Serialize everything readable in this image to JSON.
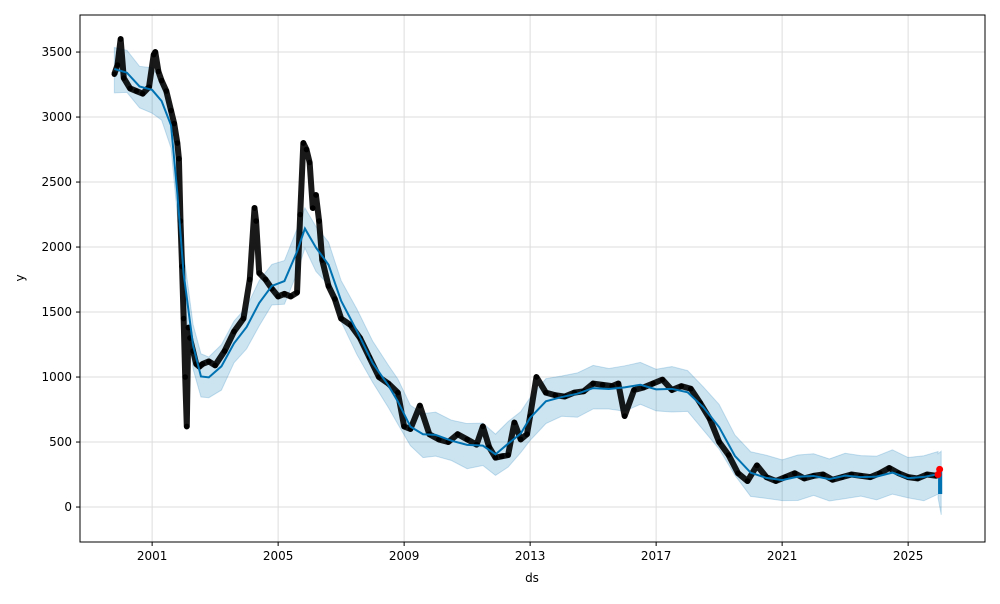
{
  "chart_data": {
    "type": "line",
    "title": "",
    "xlabel": "ds",
    "ylabel": "y",
    "xlim": [
      1998.71,
      2027.44
    ],
    "ylim": [
      -269,
      3785
    ],
    "x_ticks": [
      2001,
      2005,
      2009,
      2013,
      2017,
      2021,
      2025
    ],
    "x_tick_labels": [
      "2001",
      "2005",
      "2009",
      "2013",
      "2017",
      "2021",
      "2025"
    ],
    "y_ticks": [
      0,
      500,
      1000,
      1500,
      2000,
      2500,
      3000,
      3500
    ],
    "y_tick_labels": [
      "0",
      "500",
      "1000",
      "1500",
      "2000",
      "2500",
      "3000",
      "3500"
    ],
    "grid": true,
    "colors": {
      "observed": "#000000",
      "forecast": "#0072B2",
      "interval": "#0072B2",
      "test": "#ff0000"
    },
    "forecast": {
      "x": [
        1999.8,
        2000.2,
        2000.6,
        2001.0,
        2001.3,
        2001.6,
        2001.8,
        2002.0,
        2002.3,
        2002.55,
        2002.8,
        2003.2,
        2003.6,
        2004.0,
        2004.4,
        2004.8,
        2005.2,
        2005.6,
        2005.85,
        2006.2,
        2006.6,
        2007.0,
        2007.5,
        2008.0,
        2008.5,
        2008.8,
        2009.2,
        2009.6,
        2010.0,
        2010.5,
        2011.0,
        2011.5,
        2011.9,
        2012.3,
        2012.7,
        2013.0,
        2013.5,
        2014.0,
        2014.5,
        2015.0,
        2015.5,
        2016.0,
        2016.5,
        2017.0,
        2017.5,
        2018.0,
        2018.5,
        2019.0,
        2019.5,
        2020.0,
        2020.5,
        2021.0,
        2021.5,
        2022.0,
        2022.5,
        2023.0,
        2023.5,
        2024.0,
        2024.5,
        2025.0,
        2025.5,
        2025.95
      ],
      "yhat": [
        3370,
        3330,
        3250,
        3200,
        3120,
        2950,
        2400,
        1800,
        1250,
        990,
        1010,
        1080,
        1250,
        1400,
        1560,
        1700,
        1750,
        1950,
        2150,
        2000,
        1850,
        1600,
        1350,
        1100,
        950,
        800,
        620,
        570,
        540,
        520,
        480,
        460,
        420,
        480,
        560,
        700,
        800,
        850,
        880,
        900,
        920,
        920,
        930,
        920,
        900,
        880,
        780,
        600,
        400,
        270,
        210,
        220,
        230,
        230,
        230,
        230,
        230,
        245,
        250,
        230,
        235,
        240
      ],
      "interval_halfwidth": 165
    },
    "future": {
      "x": [
        2025.95,
        2026.05
      ],
      "yhat": [
        240,
        180
      ],
      "lower": [
        70,
        -60
      ],
      "upper": [
        410,
        430
      ]
    },
    "observed": {
      "x": [
        1999.8,
        1999.9,
        2000.0,
        2000.1,
        2000.3,
        2000.5,
        2000.7,
        2000.9,
        2001.05,
        2001.1,
        2001.2,
        2001.3,
        2001.45,
        2001.6,
        2001.7,
        2001.8,
        2001.85,
        2001.9,
        2001.95,
        2002.0,
        2002.05,
        2002.1,
        2002.15,
        2002.2,
        2002.3,
        2002.4,
        2002.5,
        2002.6,
        2002.8,
        2003.0,
        2003.3,
        2003.6,
        2003.9,
        2004.1,
        2004.25,
        2004.3,
        2004.4,
        2004.6,
        2004.8,
        2005.0,
        2005.2,
        2005.4,
        2005.6,
        2005.7,
        2005.8,
        2005.9,
        2006.0,
        2006.1,
        2006.2,
        2006.3,
        2006.4,
        2006.6,
        2006.8,
        2007.0,
        2007.3,
        2007.6,
        2007.9,
        2008.2,
        2008.5,
        2008.8,
        2009.0,
        2009.2,
        2009.5,
        2009.8,
        2010.1,
        2010.4,
        2010.7,
        2011.0,
        2011.3,
        2011.5,
        2011.7,
        2011.9,
        2012.1,
        2012.3,
        2012.5,
        2012.7,
        2012.9,
        2013.0,
        2013.2,
        2013.5,
        2013.8,
        2014.1,
        2014.4,
        2014.7,
        2015.0,
        2015.3,
        2015.6,
        2015.8,
        2016.0,
        2016.3,
        2016.6,
        2016.9,
        2017.2,
        2017.5,
        2017.8,
        2018.1,
        2018.4,
        2018.7,
        2019.0,
        2019.3,
        2019.6,
        2019.9,
        2020.2,
        2020.5,
        2020.8,
        2021.1,
        2021.4,
        2021.7,
        2022.0,
        2022.3,
        2022.6,
        2022.9,
        2023.2,
        2023.5,
        2023.8,
        2024.1,
        2024.4,
        2024.7,
        2025.0,
        2025.3,
        2025.6,
        2025.9
      ],
      "y": [
        3330,
        3400,
        3600,
        3300,
        3220,
        3200,
        3180,
        3230,
        3480,
        3500,
        3350,
        3280,
        3200,
        3050,
        2950,
        2800,
        2680,
        2200,
        1850,
        1450,
        1000,
        620,
        1380,
        1300,
        1200,
        1100,
        1080,
        1100,
        1120,
        1090,
        1200,
        1350,
        1450,
        1750,
        2300,
        2200,
        1800,
        1750,
        1680,
        1620,
        1640,
        1620,
        1650,
        2250,
        2800,
        2750,
        2650,
        2300,
        2400,
        2200,
        1900,
        1700,
        1600,
        1450,
        1400,
        1300,
        1150,
        1000,
        950,
        880,
        620,
        600,
        780,
        560,
        520,
        500,
        560,
        520,
        480,
        620,
        460,
        380,
        390,
        400,
        650,
        520,
        560,
        700,
        1000,
        880,
        860,
        850,
        880,
        890,
        950,
        940,
        930,
        950,
        700,
        900,
        920,
        950,
        980,
        900,
        930,
        910,
        800,
        680,
        500,
        400,
        260,
        200,
        320,
        230,
        200,
        230,
        260,
        220,
        240,
        250,
        210,
        230,
        250,
        240,
        230,
        260,
        300,
        260,
        230,
        220,
        250,
        240
      ]
    },
    "test_points": {
      "x": [
        2025.95,
        2026.0
      ],
      "y": [
        250,
        290
      ]
    }
  }
}
